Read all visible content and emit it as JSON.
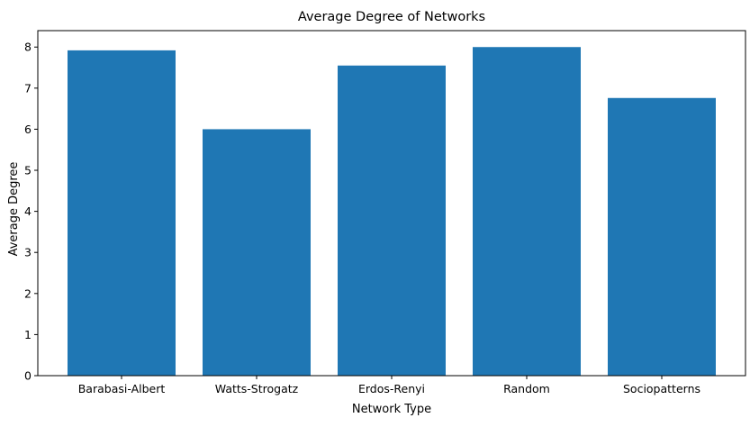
{
  "chart_data": {
    "type": "bar",
    "title": "Average Degree of Networks",
    "xlabel": "Network Type",
    "ylabel": "Average Degree",
    "categories": [
      "Barabasi-Albert",
      "Watts-Strogatz",
      "Erdos-Renyi",
      "Random",
      "Sociopatterns"
    ],
    "values": [
      7.92,
      6.0,
      7.55,
      8.0,
      6.76
    ],
    "ylim": [
      0,
      8.4
    ],
    "yticks": [
      0,
      1,
      2,
      3,
      4,
      5,
      6,
      7,
      8
    ],
    "bar_color": "#1f77b4",
    "grid": false,
    "legend": "none"
  }
}
